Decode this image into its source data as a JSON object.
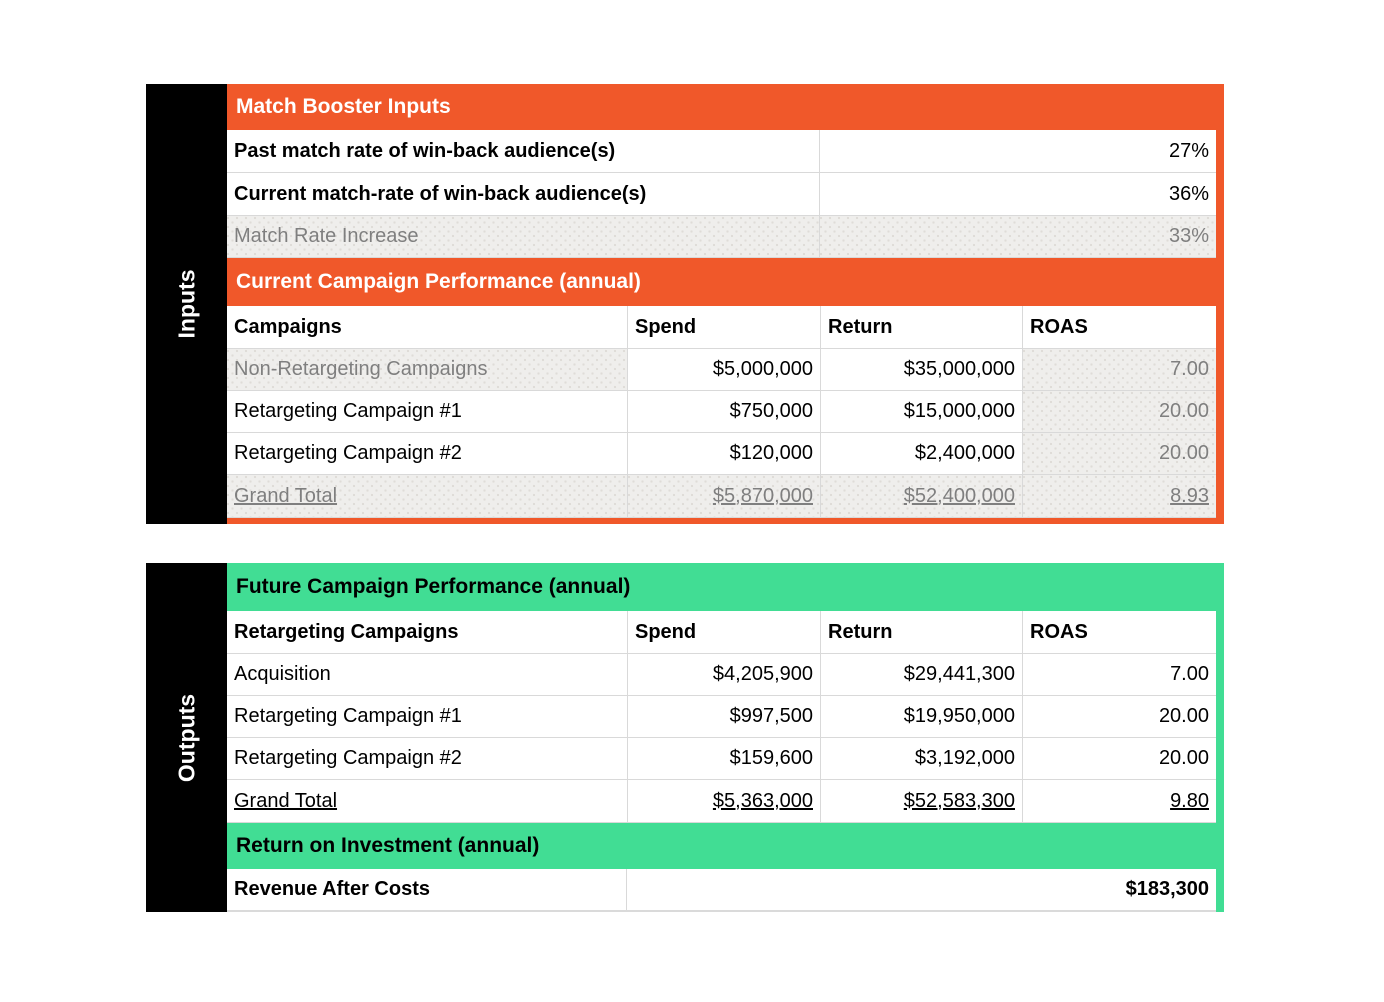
{
  "palette": {
    "orange": "#F0582A",
    "green": "#41DD94",
    "rail_black": "#000000",
    "muted_text": "#7F7F7F",
    "gridline": "#D9D9D9",
    "computed_cell_bg": "#EFEEEC"
  },
  "inputs": {
    "rail_label": "Inputs",
    "match_booster": {
      "title": "Match Booster Inputs",
      "rows": [
        {
          "label": "Past match rate of win-back audience(s)",
          "value": "27%"
        },
        {
          "label": "Current match-rate of win-back audience(s)",
          "value": "36%"
        },
        {
          "label": "Match Rate Increase",
          "value": "33%"
        }
      ]
    },
    "current_performance": {
      "title": "Current Campaign Performance (annual)",
      "columns": [
        "Campaigns",
        "Spend",
        "Return",
        "ROAS"
      ],
      "rows": [
        {
          "campaign": "Non-Retargeting Campaigns",
          "spend": "$5,000,000",
          "return": "$35,000,000",
          "roas": "7.00"
        },
        {
          "campaign": "Retargeting Campaign #1",
          "spend": "$750,000",
          "return": "$15,000,000",
          "roas": "20.00"
        },
        {
          "campaign": "Retargeting Campaign #2",
          "spend": "$120,000",
          "return": "$2,400,000",
          "roas": "20.00"
        },
        {
          "campaign": "Grand Total",
          "spend": "$5,870,000",
          "return": "$52,400,000",
          "roas": "8.93"
        }
      ]
    }
  },
  "outputs": {
    "rail_label": "Outputs",
    "future_performance": {
      "title": "Future Campaign Performance (annual)",
      "columns": [
        "Retargeting Campaigns",
        "Spend",
        "Return",
        "ROAS"
      ],
      "rows": [
        {
          "campaign": "Acquisition",
          "spend": "$4,205,900",
          "return": "$29,441,300",
          "roas": "7.00"
        },
        {
          "campaign": "Retargeting Campaign #1",
          "spend": "$997,500",
          "return": "$19,950,000",
          "roas": "20.00"
        },
        {
          "campaign": "Retargeting Campaign #2",
          "spend": "$159,600",
          "return": "$3,192,000",
          "roas": "20.00"
        },
        {
          "campaign": "Grand Total",
          "spend": "$5,363,000",
          "return": "$52,583,300",
          "roas": "9.80"
        }
      ]
    },
    "roi": {
      "title": "Return on Investment (annual)",
      "rows": [
        {
          "label": "Revenue After Costs",
          "value": "$183,300"
        }
      ]
    }
  }
}
